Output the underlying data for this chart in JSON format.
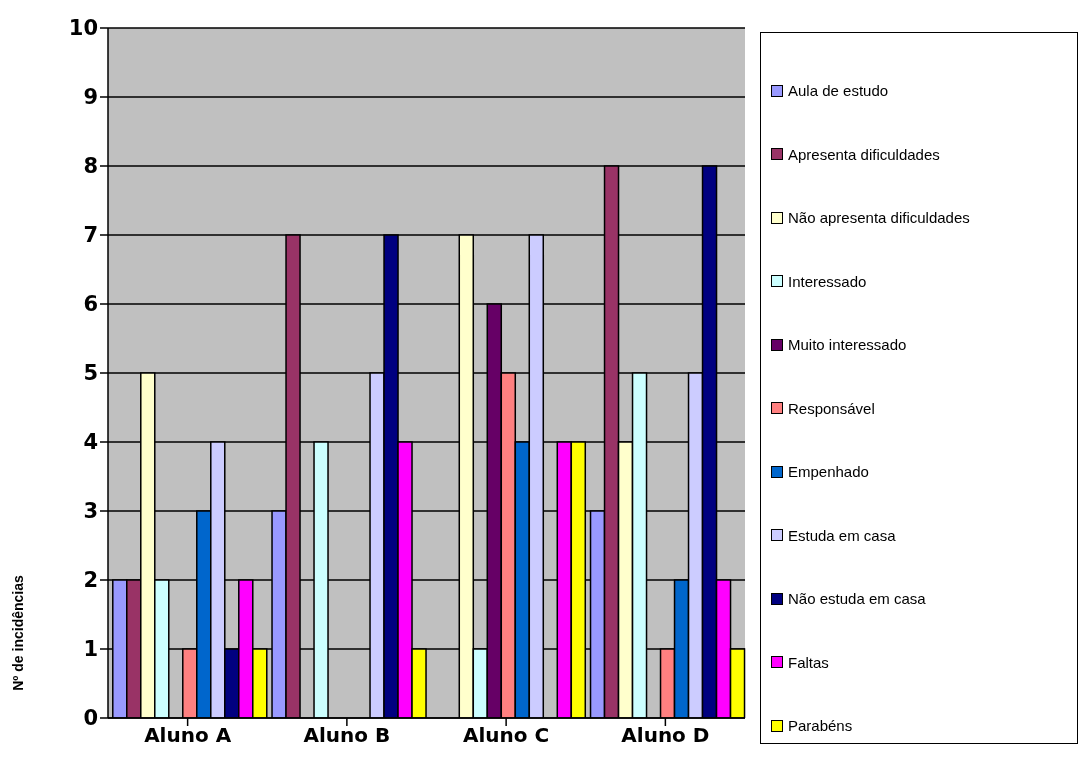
{
  "chart_data": {
    "type": "bar",
    "ylabel": "Nº de incidências",
    "categories": [
      "Aluno A",
      "Aluno B",
      "Aluno C",
      "Aluno D"
    ],
    "series": [
      {
        "name": "Aula de estudo",
        "color": "#9999ff",
        "values": [
          2,
          3,
          0,
          3
        ]
      },
      {
        "name": "Apresenta dificuldades",
        "color": "#993366",
        "values": [
          2,
          7,
          0,
          8
        ]
      },
      {
        "name": "Não apresenta dificuldades",
        "color": "#ffffcc",
        "values": [
          5,
          0,
          7,
          4
        ]
      },
      {
        "name": "Interessado",
        "color": "#ccffff",
        "values": [
          2,
          4,
          1,
          5
        ]
      },
      {
        "name": "Muito interessado",
        "color": "#660066",
        "values": [
          0,
          0,
          6,
          0
        ]
      },
      {
        "name": "Responsável",
        "color": "#ff8080",
        "values": [
          1,
          0,
          5,
          1
        ]
      },
      {
        "name": "Empenhado",
        "color": "#0066cc",
        "values": [
          3,
          0,
          4,
          2
        ]
      },
      {
        "name": "Estuda em casa",
        "color": "#ccccff",
        "values": [
          4,
          5,
          7,
          5
        ]
      },
      {
        "name": "Não estuda em casa",
        "color": "#000080",
        "values": [
          1,
          7,
          0,
          8
        ]
      },
      {
        "name": "Faltas",
        "color": "#ff00ff",
        "values": [
          2,
          4,
          4,
          2
        ]
      },
      {
        "name": "Parabéns",
        "color": "#ffff00",
        "values": [
          1,
          1,
          4,
          1
        ]
      }
    ],
    "ylim": [
      0,
      10
    ],
    "yticks": [
      0,
      1,
      2,
      3,
      4,
      5,
      6,
      7,
      8,
      9,
      10
    ],
    "grid": "y",
    "legend": "right"
  }
}
